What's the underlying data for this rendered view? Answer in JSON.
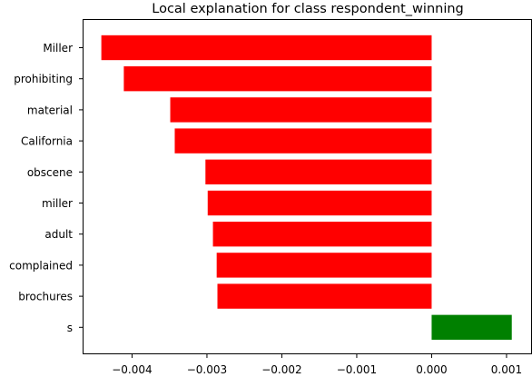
{
  "chart_data": {
    "type": "bar",
    "orientation": "horizontal",
    "title": "Local explanation for class respondent_winning",
    "xlabel": "",
    "ylabel": "",
    "categories": [
      "Miller",
      "prohibiting",
      "material",
      "California",
      "obscene",
      "miller",
      "adult",
      "complained",
      "brochures",
      "s"
    ],
    "values": [
      -0.00441,
      -0.00411,
      -0.00349,
      -0.00343,
      -0.00302,
      -0.00299,
      -0.00292,
      -0.00287,
      -0.00286,
      0.00107
    ],
    "xlim": [
      -0.00466,
      0.00134
    ],
    "x_ticks": [
      -0.004,
      -0.003,
      -0.002,
      -0.001,
      0.0,
      0.001
    ],
    "x_tick_labels": [
      "−0.004",
      "−0.003",
      "−0.002",
      "−0.001",
      "0.000",
      "0.001"
    ],
    "grid": false,
    "colors": {
      "negative": "#ff0000",
      "positive": "#008000"
    }
  }
}
